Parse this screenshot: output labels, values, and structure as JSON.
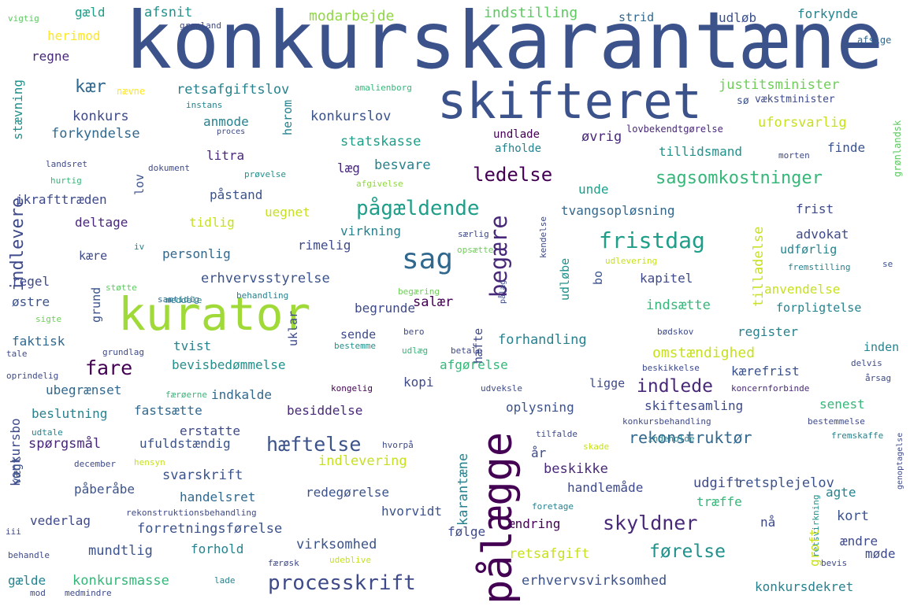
{
  "words": [
    {
      "text": "konkurskarantæne",
      "color": "#3b528b"
    },
    {
      "text": "skifteret",
      "color": "#3b528b"
    },
    {
      "text": "kurator",
      "color": "#a0da39"
    },
    {
      "text": "pålægge",
      "color": "#440154"
    },
    {
      "text": "sag",
      "color": "#31688e"
    },
    {
      "text": "begære",
      "color": "#482878"
    },
    {
      "text": "fare",
      "color": "#440154"
    },
    {
      "text": "processkrift",
      "color": "#3e4a89"
    },
    {
      "text": "fristdag",
      "color": "#1f9e89"
    },
    {
      "text": "hæftelse",
      "color": "#3b528b"
    },
    {
      "text": "skyldner",
      "color": "#482878"
    },
    {
      "text": "pågældende",
      "color": "#1f9e89"
    },
    {
      "text": "ledelse",
      "color": "#440154"
    },
    {
      "text": "indlevere",
      "color": "#3e4a89"
    },
    {
      "text": "førelse",
      "color": "#21918c"
    },
    {
      "text": "sagsomkostninger",
      "color": "#35b779"
    },
    {
      "text": "indlede",
      "color": "#482878"
    },
    {
      "text": "rekonstruktør",
      "color": "#31688e"
    },
    {
      "text": "modarbejde",
      "color": "#90d743"
    },
    {
      "text": "indstilling",
      "color": "#5ec962"
    },
    {
      "text": "retsafgiftslov",
      "color": "#26828e"
    },
    {
      "text": "justitsminister",
      "color": "#6ece58"
    },
    {
      "text": "uforsvarlig",
      "color": "#c8e020"
    },
    {
      "text": "statskasse",
      "color": "#1f9e89"
    },
    {
      "text": "konkurslov",
      "color": "#3b528b"
    },
    {
      "text": "forkyndelse",
      "color": "#31688e"
    },
    {
      "text": "tillidsmand",
      "color": "#21918c"
    },
    {
      "text": "konkurs",
      "color": "#3e4a89"
    },
    {
      "text": "anmode",
      "color": "#26828e"
    },
    {
      "text": "kær",
      "color": "#31688e"
    },
    {
      "text": "regne",
      "color": "#482878"
    },
    {
      "text": "gæld",
      "color": "#1f9e89"
    },
    {
      "text": "afsnit",
      "color": "#21918c"
    },
    {
      "text": "herimod",
      "color": "#fde725"
    },
    {
      "text": "strid",
      "color": "#31688e"
    },
    {
      "text": "udløb",
      "color": "#3b528b"
    },
    {
      "text": "forkynde",
      "color": "#26828e"
    },
    {
      "text": "vigtig",
      "color": "#5ec962"
    },
    {
      "text": "grønland",
      "color": "#3e4a89"
    },
    {
      "text": "afsige",
      "color": "#31688e"
    },
    {
      "text": "nævne",
      "color": "#fde725"
    },
    {
      "text": "amalienborg",
      "color": "#35b779"
    },
    {
      "text": "instans",
      "color": "#26828e"
    },
    {
      "text": "sø",
      "color": "#3b528b"
    },
    {
      "text": "vækstminister",
      "color": "#3e4a89"
    },
    {
      "text": "lovbekendtgørelse",
      "color": "#482878"
    },
    {
      "text": "proces",
      "color": "#3e4a89"
    },
    {
      "text": "undlade",
      "color": "#440154"
    },
    {
      "text": "afholde",
      "color": "#26828e"
    },
    {
      "text": "øvrig",
      "color": "#482878"
    },
    {
      "text": "finde",
      "color": "#3b528b"
    },
    {
      "text": "morten",
      "color": "#3e4a89"
    },
    {
      "text": "grønlandsk",
      "color": "#5ec962"
    },
    {
      "text": "landsret",
      "color": "#3e4a89"
    },
    {
      "text": "dokument",
      "color": "#3e4a89"
    },
    {
      "text": "prøvelse",
      "color": "#21918c"
    },
    {
      "text": "hurtig",
      "color": "#35b779"
    },
    {
      "text": "afgivelse",
      "color": "#90d743"
    },
    {
      "text": "litra",
      "color": "#482878"
    },
    {
      "text": "læg",
      "color": "#482878"
    },
    {
      "text": "besvare",
      "color": "#26828e"
    },
    {
      "text": "unde",
      "color": "#1f9e89"
    },
    {
      "text": "ikrafttræden",
      "color": "#3e4a89"
    },
    {
      "text": "påstand",
      "color": "#3b528b"
    },
    {
      "text": "uegnet",
      "color": "#c8e020"
    },
    {
      "text": "tvangsopløsning",
      "color": "#31688e"
    },
    {
      "text": "frist",
      "color": "#3e4a89"
    },
    {
      "text": "deltage",
      "color": "#482878"
    },
    {
      "text": "tidlig",
      "color": "#c8e020"
    },
    {
      "text": "virkning",
      "color": "#26828e"
    },
    {
      "text": "advokat",
      "color": "#3e4a89"
    },
    {
      "text": "kære",
      "color": "#3e4a89"
    },
    {
      "text": "personlig",
      "color": "#31688e"
    },
    {
      "text": "rimelig",
      "color": "#3e4a89"
    },
    {
      "text": "udførlig",
      "color": "#26828e"
    },
    {
      "text": "regel",
      "color": "#3e4a89"
    },
    {
      "text": "erhvervsstyrelse",
      "color": "#3b528b"
    },
    {
      "text": "kapitel",
      "color": "#3e4a89"
    },
    {
      "text": "støtte",
      "color": "#5ec962"
    },
    {
      "text": "samtidig",
      "color": "#31688e"
    },
    {
      "text": "iv",
      "color": "#26828e"
    },
    {
      "text": "særlig",
      "color": "#3e4a89"
    },
    {
      "text": "opsætte",
      "color": "#6ece58"
    },
    {
      "text": "udlevering",
      "color": "#c8e020"
    },
    {
      "text": "fremstilling",
      "color": "#26828e"
    },
    {
      "text": "se",
      "color": "#3b528b"
    },
    {
      "text": "østre",
      "color": "#3b528b"
    },
    {
      "text": "meddele",
      "color": "#26828e"
    },
    {
      "text": "behandling",
      "color": "#26828e"
    },
    {
      "text": "begæring",
      "color": "#6ece58"
    },
    {
      "text": "begrunde",
      "color": "#3e4a89"
    },
    {
      "text": "salær",
      "color": "#440154"
    },
    {
      "text": "indsætte",
      "color": "#35b779"
    },
    {
      "text": "anvendelse",
      "color": "#c8e020"
    },
    {
      "text": "forpligtelse",
      "color": "#26828e"
    },
    {
      "text": "sigte",
      "color": "#6ece58"
    },
    {
      "text": "faktisk",
      "color": "#31688e"
    },
    {
      "text": "sende",
      "color": "#3e4a89"
    },
    {
      "text": "register",
      "color": "#26828e"
    },
    {
      "text": "bødskov",
      "color": "#3e4a89"
    },
    {
      "text": "bero",
      "color": "#3e4a89"
    },
    {
      "text": "tvist",
      "color": "#26828e"
    },
    {
      "text": "grundlag",
      "color": "#3e4a89"
    },
    {
      "text": "forhandling",
      "color": "#26828e"
    },
    {
      "text": "omstændighed",
      "color": "#c8e020"
    },
    {
      "text": "inden",
      "color": "#26828e"
    },
    {
      "text": "tale",
      "color": "#3e4a89"
    },
    {
      "text": "bestemme",
      "color": "#21918c"
    },
    {
      "text": "udlæg",
      "color": "#35b779"
    },
    {
      "text": "betale",
      "color": "#3e4a89"
    },
    {
      "text": "kærefrist",
      "color": "#3b528b"
    },
    {
      "text": "delvis",
      "color": "#3e4a89"
    },
    {
      "text": "bevisbedømmelse",
      "color": "#21918c"
    },
    {
      "text": "afgørelse",
      "color": "#35b779"
    },
    {
      "text": "oprindelig",
      "color": "#3e4a89"
    },
    {
      "text": "beskikkelse",
      "color": "#3e4a89"
    },
    {
      "text": "årsag",
      "color": "#3e4a89"
    },
    {
      "text": "ubegrænset",
      "color": "#31688e"
    },
    {
      "text": "kopi",
      "color": "#3e4a89"
    },
    {
      "text": "ligge",
      "color": "#3e4a89"
    },
    {
      "text": "færøerne",
      "color": "#35b779"
    },
    {
      "text": "indkalde",
      "color": "#31688e"
    },
    {
      "text": "kongelig",
      "color": "#440154"
    },
    {
      "text": "udveksle",
      "color": "#3e4a89"
    },
    {
      "text": "koncernforbinde",
      "color": "#482878"
    },
    {
      "text": "beslutning",
      "color": "#26828e"
    },
    {
      "text": "fastsætte",
      "color": "#31688e"
    },
    {
      "text": "besiddelse",
      "color": "#482878"
    },
    {
      "text": "oplysning",
      "color": "#3b528b"
    },
    {
      "text": "skiftesamling",
      "color": "#3e4a89"
    },
    {
      "text": "senest",
      "color": "#35b779"
    },
    {
      "text": "konkursbo",
      "color": "#3e4a89"
    },
    {
      "text": "udtale",
      "color": "#26828e"
    },
    {
      "text": "erstatte",
      "color": "#3e4a89"
    },
    {
      "text": "konkursbehandling",
      "color": "#3e4a89"
    },
    {
      "text": "bestemmelse",
      "color": "#3e4a89"
    },
    {
      "text": "spørgsmål",
      "color": "#482878"
    },
    {
      "text": "ufuldstændig",
      "color": "#3b528b"
    },
    {
      "text": "hvorpå",
      "color": "#3e4a89"
    },
    {
      "text": "tilfalde",
      "color": "#3e4a89"
    },
    {
      "text": "fremskaffe",
      "color": "#26828e"
    },
    {
      "text": "vægt",
      "color": "#3b528b"
    },
    {
      "text": "december",
      "color": "#3e4a89"
    },
    {
      "text": "hensyn",
      "color": "#c8e020"
    },
    {
      "text": "år",
      "color": "#3e4a89"
    },
    {
      "text": "skade",
      "color": "#c8e020"
    },
    {
      "text": "indeholde",
      "color": "#26828e"
    },
    {
      "text": "genoptagelse",
      "color": "#3e4a89"
    },
    {
      "text": "svarskrift",
      "color": "#3b528b"
    },
    {
      "text": "indlevering",
      "color": "#c8e020"
    },
    {
      "text": "beskikke",
      "color": "#482878"
    },
    {
      "text": "udgift",
      "color": "#3e4a89"
    },
    {
      "text": "retsplejelov",
      "color": "#3b528b"
    },
    {
      "text": "påberåbe",
      "color": "#3b528b"
    },
    {
      "text": "handlemåde",
      "color": "#3e4a89"
    },
    {
      "text": "træffe",
      "color": "#35b779"
    },
    {
      "text": "agte",
      "color": "#26828e"
    },
    {
      "text": "handelsret",
      "color": "#31688e"
    },
    {
      "text": "redegørelse",
      "color": "#3b528b"
    },
    {
      "text": "foretage",
      "color": "#26828e"
    },
    {
      "text": "rekonstruktionsbehandling",
      "color": "#3e4a89"
    },
    {
      "text": "hvorvidt",
      "color": "#3b528b"
    },
    {
      "text": "vederlag",
      "color": "#3e4a89"
    },
    {
      "text": "kort",
      "color": "#3b528b"
    },
    {
      "text": "iii",
      "color": "#3e4a89"
    },
    {
      "text": "forretningsførelse",
      "color": "#3b528b"
    },
    {
      "text": "ændring",
      "color": "#440154"
    },
    {
      "text": "nå",
      "color": "#3e4a89"
    },
    {
      "text": "følge",
      "color": "#3e4a89"
    },
    {
      "text": "retsvirkning",
      "color": "#21918c"
    },
    {
      "text": "ændre",
      "color": "#3e4a89"
    },
    {
      "text": "mundtlig",
      "color": "#3b528b"
    },
    {
      "text": "forhold",
      "color": "#26828e"
    },
    {
      "text": "behandle",
      "color": "#3e4a89"
    },
    {
      "text": "virksomhed",
      "color": "#3b528b"
    },
    {
      "text": "retsafgift",
      "color": "#c8e020"
    },
    {
      "text": "møde",
      "color": "#3e4a89"
    },
    {
      "text": "bevis",
      "color": "#3e4a89"
    },
    {
      "text": "færøsk",
      "color": "#3e4a89"
    },
    {
      "text": "udeblive",
      "color": "#c8e020"
    },
    {
      "text": "groft",
      "color": "#c8e020"
    },
    {
      "text": "konkursmasse",
      "color": "#35b779"
    },
    {
      "text": "gælde",
      "color": "#26828e"
    },
    {
      "text": "lade",
      "color": "#26828e"
    },
    {
      "text": "erhvervsvirksomhed",
      "color": "#3b528b"
    },
    {
      "text": "konkursdekret",
      "color": "#26828e"
    },
    {
      "text": "mod",
      "color": "#3e4a89"
    },
    {
      "text": "medmindre",
      "color": "#3e4a89"
    },
    {
      "text": "stævning",
      "color": "#21918c"
    },
    {
      "text": "lov",
      "color": "#3b528b"
    },
    {
      "text": "herom",
      "color": "#26828e"
    },
    {
      "text": "grund",
      "color": "#3b528b"
    },
    {
      "text": "uklar",
      "color": "#3e4a89"
    },
    {
      "text": "hæfte",
      "color": "#3e4a89"
    },
    {
      "text": "udløbe",
      "color": "#21918c"
    },
    {
      "text": "bo",
      "color": "#3b528b"
    },
    {
      "text": "tilladelse",
      "color": "#c8e020"
    },
    {
      "text": "kendelse",
      "color": "#3e4a89"
    },
    {
      "text": "pålæg",
      "color": "#3e4a89"
    },
    {
      "text": "karantæne",
      "color": "#26828e"
    }
  ]
}
